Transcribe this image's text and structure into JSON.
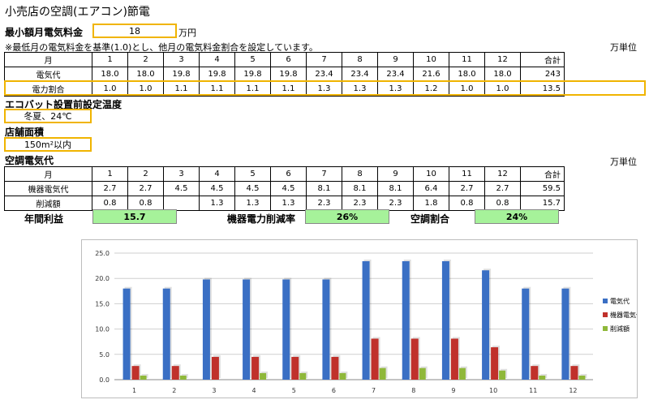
{
  "title": "小売店の空調(エアコン)節電",
  "min_fee": {
    "label": "最小額月電気料金",
    "value": "18",
    "unit": "万円"
  },
  "note": "※最低月の電気料金を基準(1.0)とし、他月の電気料金割合を設定しています。",
  "unit_label": "万単位",
  "table1": {
    "header_label": "月",
    "months": [
      "1",
      "2",
      "3",
      "4",
      "5",
      "6",
      "7",
      "8",
      "9",
      "10",
      "11",
      "12"
    ],
    "total_label": "合計",
    "rows": [
      {
        "label": "電気代",
        "values": [
          "18.0",
          "18.0",
          "19.8",
          "19.8",
          "19.8",
          "19.8",
          "23.4",
          "23.4",
          "23.4",
          "21.6",
          "18.0",
          "18.0"
        ],
        "total": "243"
      },
      {
        "label": "電力割合",
        "values": [
          "1.0",
          "1.0",
          "1.1",
          "1.1",
          "1.1",
          "1.1",
          "1.3",
          "1.3",
          "1.3",
          "1.2",
          "1.0",
          "1.0"
        ],
        "total": "13.5"
      }
    ]
  },
  "ecobat": {
    "label": "エコバット設置前設定温度",
    "value": "冬夏、24℃"
  },
  "area": {
    "label": "店舗面積",
    "value": "150m²以内"
  },
  "aircon_section": {
    "label": "空調電気代",
    "unit_label": "万単位"
  },
  "table2": {
    "header_label": "月",
    "months": [
      "1",
      "2",
      "3",
      "4",
      "5",
      "6",
      "7",
      "8",
      "9",
      "10",
      "11",
      "12"
    ],
    "total_label": "合計",
    "rows": [
      {
        "label": "機器電気代",
        "values": [
          "2.7",
          "2.7",
          "4.5",
          "4.5",
          "4.5",
          "4.5",
          "8.1",
          "8.1",
          "8.1",
          "6.4",
          "2.7",
          "2.7"
        ],
        "total": "59.5"
      },
      {
        "label": "削減額",
        "values": [
          "0.8",
          "0.8",
          "",
          "1.3",
          "1.3",
          "1.3",
          "2.3",
          "2.3",
          "2.3",
          "1.8",
          "0.8",
          "0.8"
        ],
        "total": "15.7"
      }
    ]
  },
  "summary": [
    {
      "label": "年間利益",
      "value": "15.7"
    },
    {
      "label": "機器電力削減率",
      "value": "26%"
    },
    {
      "label": "空調割合",
      "value": "24%"
    }
  ],
  "colors": {
    "accent_border": "#f0b400",
    "summary_fill": "#a6f29a",
    "series1": "#3a6fc4",
    "series2": "#c0312b",
    "series3": "#8fb83a"
  },
  "chart_data": {
    "type": "bar",
    "categories": [
      "1",
      "2",
      "3",
      "4",
      "5",
      "6",
      "7",
      "8",
      "9",
      "10",
      "11",
      "12"
    ],
    "series": [
      {
        "name": "電気代",
        "values": [
          18.0,
          18.0,
          19.8,
          19.8,
          19.8,
          19.8,
          23.4,
          23.4,
          23.4,
          21.6,
          18.0,
          18.0
        ]
      },
      {
        "name": "機器電気代",
        "values": [
          2.7,
          2.7,
          4.5,
          4.5,
          4.5,
          4.5,
          8.1,
          8.1,
          8.1,
          6.4,
          2.7,
          2.7
        ]
      },
      {
        "name": "削減額",
        "values": [
          0.8,
          0.8,
          0,
          1.3,
          1.3,
          1.3,
          2.3,
          2.3,
          2.3,
          1.8,
          0.8,
          0.8
        ]
      }
    ],
    "yticks": [
      "0.0",
      "5.0",
      "10.0",
      "15.0",
      "20.0",
      "25.0"
    ],
    "ylim": [
      0,
      25
    ],
    "grid": true,
    "legend": "right"
  }
}
